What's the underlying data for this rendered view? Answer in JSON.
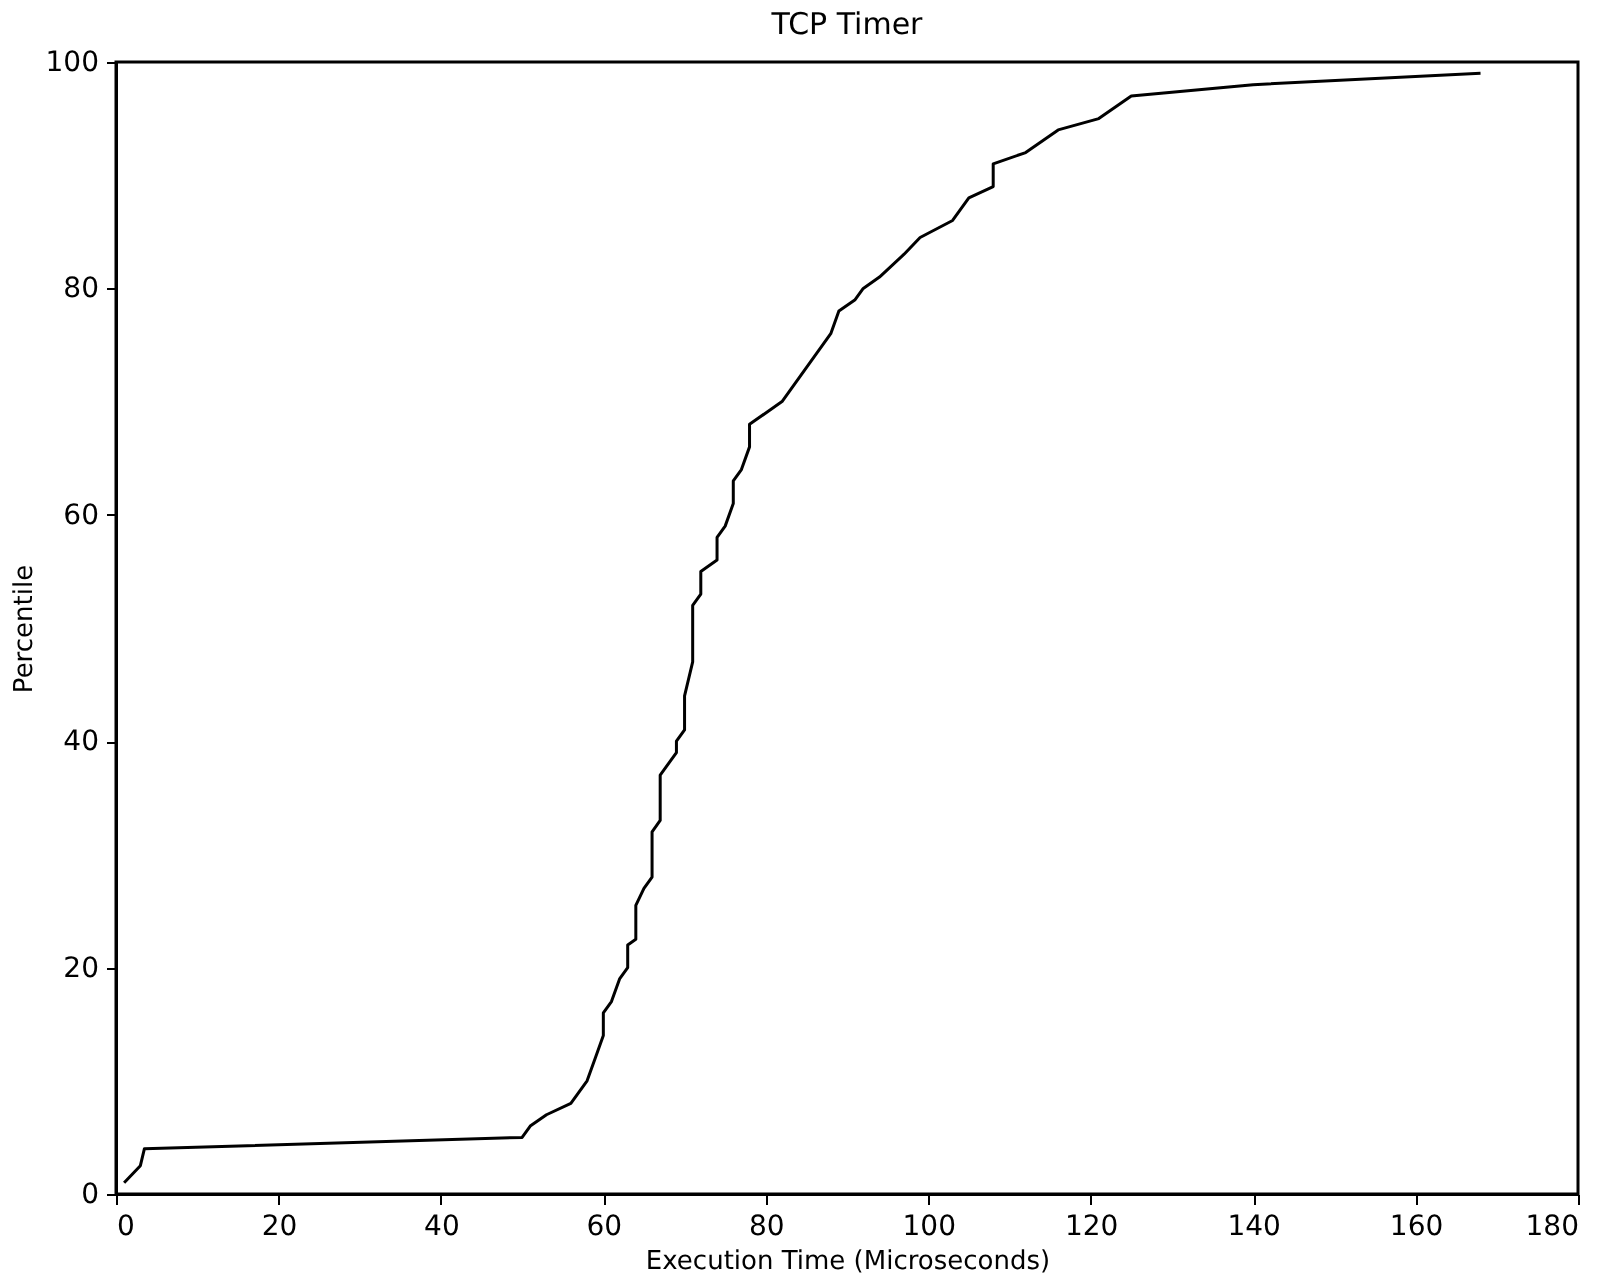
{
  "chart_data": {
    "type": "line",
    "title": "TCP Timer",
    "xlabel": "Execution Time (Microseconds)",
    "ylabel": "Percentile",
    "xlim": [
      0,
      180
    ],
    "xticks": [
      0,
      20,
      40,
      60,
      80,
      100,
      120,
      140,
      160,
      180
    ],
    "ylim": [
      0,
      100
    ],
    "yticks": [
      0,
      20,
      40,
      60,
      80,
      100
    ],
    "grid": false,
    "marker": "none",
    "line_style": "solid",
    "series": [
      {
        "color": "#000000",
        "x": [
          1,
          3,
          3.5,
          50,
          51,
          53,
          56,
          58,
          59,
          60,
          60,
          61,
          62,
          63,
          63,
          64,
          64,
          65,
          66,
          66,
          67,
          67,
          69,
          69,
          70,
          70,
          71,
          71,
          72,
          72,
          74,
          74,
          75,
          76,
          76,
          77,
          78,
          78,
          80,
          82,
          85,
          88,
          89,
          91,
          92,
          94,
          97,
          99,
          103,
          105,
          108,
          108,
          112,
          116,
          121,
          125,
          140,
          168
        ],
        "values": [
          1,
          2.5,
          4,
          5,
          6,
          7,
          8,
          10,
          12,
          14,
          16,
          17,
          19,
          20,
          22,
          22.5,
          25.5,
          27,
          28,
          32,
          33,
          37,
          39,
          40,
          41,
          44,
          47,
          52,
          53,
          55,
          56,
          58,
          59,
          61,
          63,
          64,
          66,
          68,
          69,
          70,
          73,
          76,
          78,
          79,
          80,
          81,
          83,
          84.5,
          86,
          88,
          89,
          91,
          92,
          94,
          95,
          97,
          98,
          99
        ]
      }
    ]
  }
}
